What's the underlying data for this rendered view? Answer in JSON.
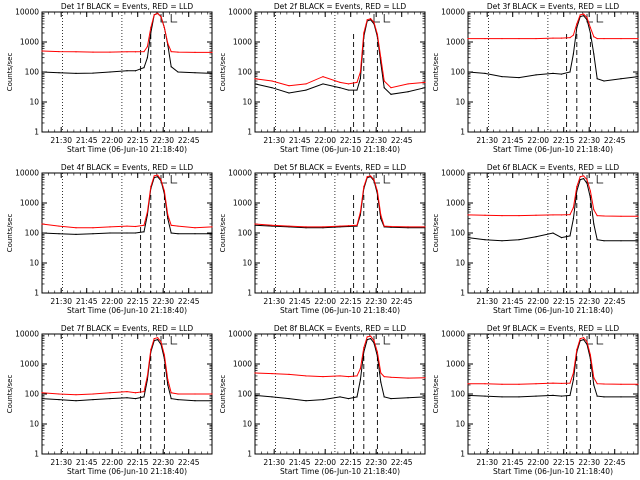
{
  "figure_title": "",
  "chart_data": [
    {
      "type": "line",
      "title": "Det 1f BLACK = Events, RED = LLD",
      "xlabel": "Start Time (06-Jun-10 21:18:40)",
      "ylabel": "Counts/sec",
      "yscale": "log",
      "ylim": [
        1,
        10000
      ],
      "ytick_labels": [
        "1",
        "10",
        "100",
        "1000",
        "10000"
      ],
      "xtick_labels": [
        "21:30",
        "21:45",
        "22:00",
        "22:15",
        "22:30",
        "22:45"
      ],
      "xlim_minutes": [
        0,
        100
      ],
      "series": [
        {
          "color": "#000000",
          "x": [
            0,
            10,
            20,
            30,
            40,
            50,
            55,
            60,
            62,
            64,
            66,
            68,
            70,
            72,
            74,
            76,
            80,
            90,
            100
          ],
          "y": [
            100,
            95,
            90,
            92,
            100,
            110,
            110,
            140,
            300,
            2000,
            8000,
            9000,
            7000,
            3000,
            800,
            150,
            100,
            95,
            90
          ]
        },
        {
          "color": "#ff0000",
          "x": [
            0,
            10,
            20,
            30,
            40,
            50,
            55,
            60,
            62,
            64,
            66,
            68,
            70,
            72,
            74,
            76,
            80,
            90,
            100
          ],
          "y": [
            500,
            480,
            470,
            460,
            460,
            470,
            470,
            480,
            700,
            3000,
            8000,
            9000,
            7000,
            3000,
            900,
            480,
            460,
            450,
            450
          ]
        }
      ]
    },
    {
      "type": "line",
      "title": "Det 2f BLACK = Events, RED = LLD",
      "xlabel": "Start Time (06-Jun-10 21:18:40)",
      "ylabel": "Counts/sec",
      "yscale": "log",
      "ylim": [
        1,
        10000
      ],
      "ytick_labels": [
        "1",
        "10",
        "100",
        "1000",
        "10000"
      ],
      "xtick_labels": [
        "21:30",
        "21:45",
        "22:00",
        "22:15",
        "22:30",
        "22:45"
      ],
      "xlim_minutes": [
        0,
        100
      ],
      "series": [
        {
          "color": "#000000",
          "x": [
            0,
            10,
            20,
            30,
            40,
            50,
            55,
            60,
            62,
            64,
            66,
            68,
            70,
            72,
            74,
            76,
            80,
            90,
            100
          ],
          "y": [
            40,
            30,
            20,
            25,
            40,
            30,
            25,
            25,
            60,
            1500,
            5000,
            5500,
            4000,
            1500,
            200,
            30,
            18,
            22,
            30
          ]
        },
        {
          "color": "#ff0000",
          "x": [
            0,
            10,
            20,
            30,
            40,
            50,
            55,
            60,
            62,
            64,
            66,
            68,
            70,
            72,
            74,
            76,
            80,
            90,
            100
          ],
          "y": [
            60,
            50,
            35,
            40,
            70,
            45,
            40,
            45,
            100,
            2000,
            5500,
            6000,
            4500,
            1800,
            300,
            50,
            30,
            40,
            45
          ]
        }
      ]
    },
    {
      "type": "line",
      "title": "Det 3f BLACK = Events, RED = LLD",
      "xlabel": "Start Time (06-Jun-10 21:18:40)",
      "ylabel": "Counts/sec",
      "yscale": "log",
      "ylim": [
        1,
        10000
      ],
      "ytick_labels": [
        "1",
        "10",
        "100",
        "1000",
        "10000"
      ],
      "xtick_labels": [
        "21:30",
        "21:45",
        "22:00",
        "22:15",
        "22:30",
        "22:45"
      ],
      "xlim_minutes": [
        0,
        100
      ],
      "series": [
        {
          "color": "#000000",
          "x": [
            0,
            10,
            20,
            30,
            40,
            50,
            55,
            60,
            62,
            64,
            66,
            68,
            70,
            72,
            74,
            76,
            80,
            90,
            100
          ],
          "y": [
            100,
            90,
            70,
            65,
            80,
            90,
            85,
            100,
            400,
            3000,
            7000,
            7500,
            5500,
            2000,
            400,
            60,
            50,
            60,
            70
          ]
        },
        {
          "color": "#ff0000",
          "x": [
            0,
            10,
            20,
            30,
            40,
            50,
            55,
            60,
            62,
            64,
            66,
            68,
            70,
            72,
            74,
            76,
            80,
            90,
            100
          ],
          "y": [
            1300,
            1300,
            1300,
            1300,
            1300,
            1350,
            1350,
            1400,
            1700,
            4000,
            8000,
            8500,
            6500,
            3000,
            1500,
            1300,
            1300,
            1300,
            1300
          ]
        }
      ]
    },
    {
      "type": "line",
      "title": "Det 4f BLACK = Events, RED = LLD",
      "xlabel": "Start Time (06-Jun-10 21:18:40)",
      "ylabel": "Counts/sec",
      "yscale": "log",
      "ylim": [
        1,
        10000
      ],
      "ytick_labels": [
        "1",
        "10",
        "100",
        "1000",
        "10000"
      ],
      "xtick_labels": [
        "21:30",
        "21:45",
        "22:00",
        "22:15",
        "22:30",
        "22:45"
      ],
      "xlim_minutes": [
        0,
        100
      ],
      "series": [
        {
          "color": "#000000",
          "x": [
            0,
            10,
            20,
            30,
            40,
            50,
            55,
            60,
            62,
            64,
            66,
            68,
            70,
            72,
            74,
            76,
            80,
            90,
            100
          ],
          "y": [
            100,
            95,
            90,
            95,
            100,
            100,
            100,
            110,
            400,
            3000,
            7000,
            7500,
            5500,
            2000,
            300,
            100,
            95,
            95,
            95
          ]
        },
        {
          "color": "#ff0000",
          "x": [
            0,
            10,
            20,
            30,
            40,
            50,
            55,
            60,
            62,
            64,
            66,
            68,
            70,
            72,
            74,
            76,
            80,
            90,
            100
          ],
          "y": [
            200,
            170,
            150,
            150,
            160,
            170,
            165,
            180,
            500,
            3500,
            8000,
            8500,
            6000,
            2500,
            400,
            180,
            170,
            150,
            160
          ]
        }
      ]
    },
    {
      "type": "line",
      "title": "Det 5f BLACK = Events, RED = LLD",
      "xlabel": "Start Time (06-Jun-10 21:18:40)",
      "ylabel": "Counts/sec",
      "yscale": "log",
      "ylim": [
        1,
        10000
      ],
      "ytick_labels": [
        "1",
        "10",
        "100",
        "1000",
        "10000"
      ],
      "xtick_labels": [
        "21:30",
        "21:45",
        "22:00",
        "22:15",
        "22:30",
        "22:45"
      ],
      "xlim_minutes": [
        0,
        100
      ],
      "series": [
        {
          "color": "#000000",
          "x": [
            0,
            10,
            20,
            30,
            40,
            50,
            55,
            60,
            62,
            64,
            66,
            68,
            70,
            72,
            74,
            76,
            80,
            90,
            100
          ],
          "y": [
            180,
            170,
            160,
            150,
            150,
            160,
            165,
            170,
            400,
            3000,
            7000,
            7500,
            5500,
            2000,
            300,
            160,
            155,
            150,
            150
          ]
        },
        {
          "color": "#ff0000",
          "x": [
            0,
            10,
            20,
            30,
            40,
            50,
            55,
            60,
            62,
            64,
            66,
            68,
            70,
            72,
            74,
            76,
            80,
            90,
            100
          ],
          "y": [
            200,
            180,
            170,
            160,
            160,
            170,
            175,
            180,
            500,
            3500,
            7500,
            8000,
            6000,
            2500,
            400,
            170,
            165,
            160,
            160
          ]
        }
      ]
    },
    {
      "type": "line",
      "title": "Det 6f BLACK = Events, RED = LLD",
      "xlabel": "Start Time (06-Jun-10 21:18:40)",
      "ylabel": "Counts/sec",
      "yscale": "log",
      "ylim": [
        1,
        10000
      ],
      "ytick_labels": [
        "1",
        "10",
        "100",
        "1000",
        "10000"
      ],
      "xtick_labels": [
        "21:30",
        "21:45",
        "22:00",
        "22:15",
        "22:30",
        "22:45"
      ],
      "xlim_minutes": [
        0,
        100
      ],
      "series": [
        {
          "color": "#000000",
          "x": [
            0,
            10,
            20,
            30,
            40,
            50,
            55,
            60,
            62,
            64,
            66,
            68,
            70,
            72,
            74,
            76,
            80,
            90,
            100
          ],
          "y": [
            70,
            60,
            55,
            60,
            75,
            100,
            70,
            80,
            300,
            2500,
            6000,
            6500,
            4500,
            1500,
            200,
            60,
            55,
            55,
            55
          ]
        },
        {
          "color": "#ff0000",
          "x": [
            0,
            10,
            20,
            30,
            40,
            50,
            55,
            60,
            62,
            64,
            66,
            68,
            70,
            72,
            74,
            76,
            80,
            90,
            100
          ],
          "y": [
            400,
            390,
            380,
            380,
            390,
            400,
            400,
            410,
            700,
            3500,
            7500,
            8000,
            6000,
            2500,
            600,
            380,
            370,
            360,
            360
          ]
        }
      ]
    },
    {
      "type": "line",
      "title": "Det 7f BLACK = Events, RED = LLD",
      "xlabel": "Start Time (06-Jun-10 21:18:40)",
      "ylabel": "Counts/sec",
      "yscale": "log",
      "ylim": [
        1,
        10000
      ],
      "ytick_labels": [
        "1",
        "10",
        "100",
        "1000",
        "10000"
      ],
      "xtick_labels": [
        "21:30",
        "21:45",
        "22:00",
        "22:15",
        "22:30",
        "22:45"
      ],
      "xlim_minutes": [
        0,
        100
      ],
      "series": [
        {
          "color": "#000000",
          "x": [
            0,
            10,
            20,
            30,
            40,
            50,
            55,
            60,
            62,
            64,
            66,
            68,
            70,
            72,
            74,
            76,
            80,
            90,
            100
          ],
          "y": [
            70,
            65,
            60,
            65,
            70,
            75,
            70,
            80,
            300,
            2500,
            6000,
            6500,
            4500,
            1500,
            200,
            70,
            65,
            60,
            60
          ]
        },
        {
          "color": "#ff0000",
          "x": [
            0,
            10,
            20,
            30,
            40,
            50,
            55,
            60,
            62,
            64,
            66,
            68,
            70,
            72,
            74,
            76,
            80,
            90,
            100
          ],
          "y": [
            110,
            100,
            95,
            100,
            110,
            120,
            110,
            120,
            400,
            3000,
            7000,
            7500,
            5500,
            2000,
            300,
            110,
            100,
            100,
            100
          ]
        }
      ]
    },
    {
      "type": "line",
      "title": "Det 8f BLACK = Events, RED = LLD",
      "xlabel": "Start Time (06-Jun-10 21:18:40)",
      "ylabel": "Counts/sec",
      "yscale": "log",
      "ylim": [
        1,
        10000
      ],
      "ytick_labels": [
        "1",
        "10",
        "100",
        "1000",
        "10000"
      ],
      "xtick_labels": [
        "21:30",
        "21:45",
        "22:00",
        "22:15",
        "22:30",
        "22:45"
      ],
      "xlim_minutes": [
        0,
        100
      ],
      "series": [
        {
          "color": "#000000",
          "x": [
            0,
            10,
            20,
            30,
            40,
            50,
            55,
            60,
            62,
            64,
            66,
            68,
            70,
            72,
            74,
            76,
            80,
            90,
            100
          ],
          "y": [
            90,
            80,
            70,
            60,
            65,
            80,
            70,
            80,
            300,
            2500,
            6500,
            7000,
            5000,
            1800,
            250,
            80,
            70,
            75,
            80
          ]
        },
        {
          "color": "#ff0000",
          "x": [
            0,
            10,
            20,
            30,
            40,
            50,
            55,
            60,
            62,
            64,
            66,
            68,
            70,
            72,
            74,
            76,
            80,
            90,
            100
          ],
          "y": [
            500,
            480,
            450,
            400,
            380,
            400,
            380,
            400,
            700,
            3500,
            8000,
            8500,
            6000,
            2500,
            500,
            380,
            360,
            340,
            350
          ]
        }
      ]
    },
    {
      "type": "line",
      "title": "Det 9f BLACK = Events, RED = LLD",
      "xlabel": "Start Time (06-Jun-10 21:18:40)",
      "ylabel": "Counts/sec",
      "yscale": "log",
      "ylim": [
        1,
        10000
      ],
      "ytick_labels": [
        "1",
        "10",
        "100",
        "1000",
        "10000"
      ],
      "xtick_labels": [
        "21:30",
        "21:45",
        "22:00",
        "22:15",
        "22:30",
        "22:45"
      ],
      "xlim_minutes": [
        0,
        100
      ],
      "series": [
        {
          "color": "#000000",
          "x": [
            0,
            10,
            20,
            30,
            40,
            50,
            55,
            60,
            62,
            64,
            66,
            68,
            70,
            72,
            74,
            76,
            80,
            90,
            100
          ],
          "y": [
            90,
            85,
            80,
            80,
            85,
            90,
            85,
            90,
            300,
            2500,
            6000,
            6500,
            4500,
            1500,
            200,
            85,
            80,
            80,
            80
          ]
        },
        {
          "color": "#ff0000",
          "x": [
            0,
            10,
            20,
            30,
            40,
            50,
            55,
            60,
            62,
            64,
            66,
            68,
            70,
            72,
            74,
            76,
            80,
            90,
            100
          ],
          "y": [
            220,
            220,
            210,
            210,
            220,
            230,
            225,
            230,
            500,
            3000,
            7000,
            7500,
            5500,
            2000,
            350,
            220,
            215,
            210,
            210
          ]
        }
      ]
    }
  ]
}
